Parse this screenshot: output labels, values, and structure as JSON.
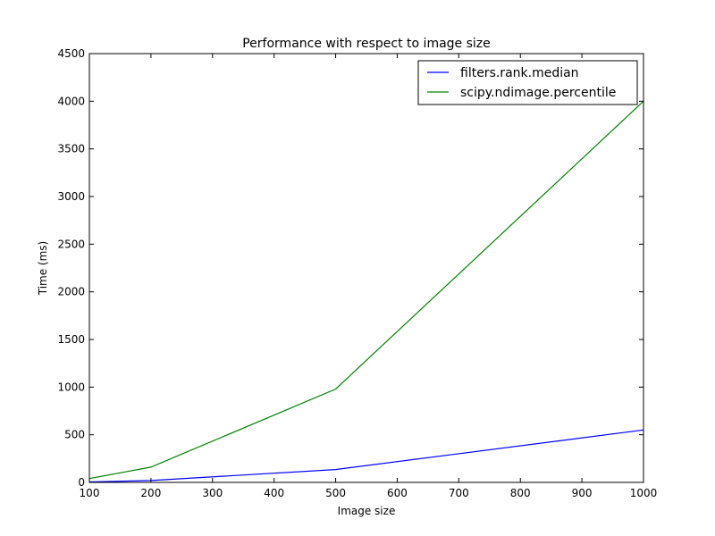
{
  "chart_data": {
    "type": "line",
    "title": "Performance with respect to image size",
    "xlabel": "Image size",
    "ylabel": "Time (ms)",
    "xlim": [
      100,
      1000
    ],
    "ylim": [
      0,
      4500
    ],
    "xticks": [
      "100",
      "200",
      "300",
      "400",
      "500",
      "600",
      "700",
      "800",
      "900",
      "1000"
    ],
    "yticks": [
      "0",
      "500",
      "1000",
      "1500",
      "2000",
      "2500",
      "3000",
      "3500",
      "4000",
      "4500"
    ],
    "grid": false,
    "legend_position": "top-right",
    "series": [
      {
        "name": "filters.rank.median",
        "color": "#0000ff",
        "x": [
          100,
          200,
          500,
          1000
        ],
        "y": [
          5,
          20,
          135,
          550
        ]
      },
      {
        "name": "scipy.ndimage.percentile",
        "color": "#008000",
        "x": [
          100,
          200,
          500,
          1000
        ],
        "y": [
          40,
          160,
          980,
          4000
        ]
      }
    ]
  }
}
